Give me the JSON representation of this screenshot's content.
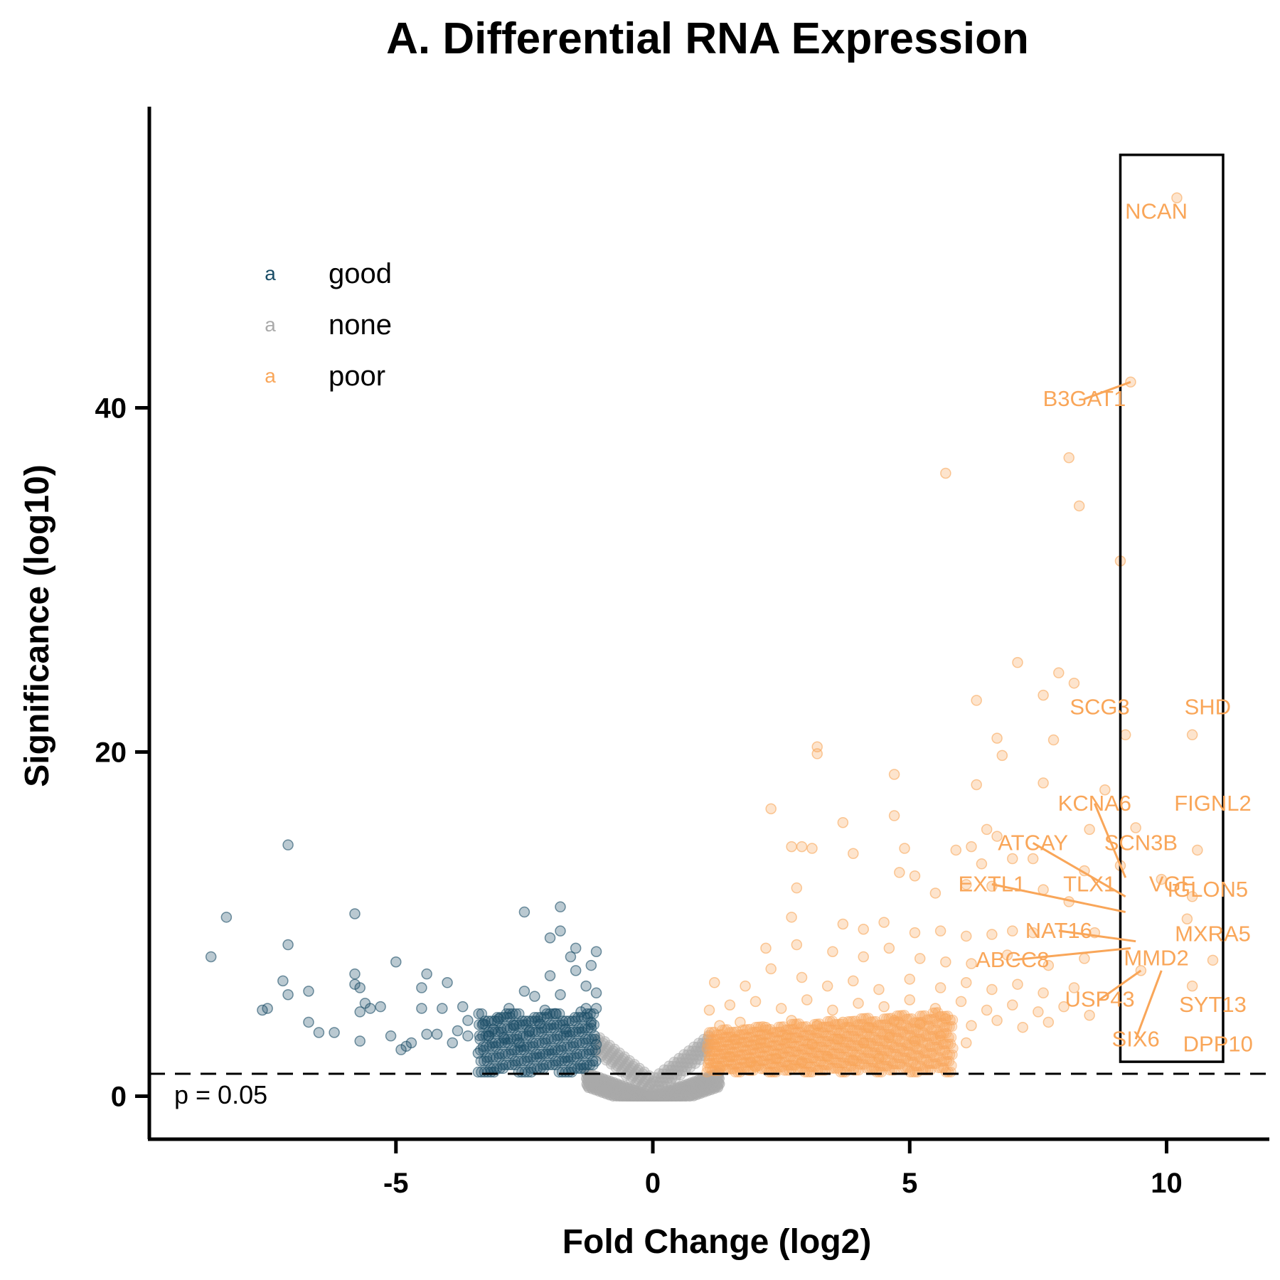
{
  "chart_data": {
    "type": "scatter",
    "title": "A. Differential RNA Expression",
    "xlabel": "Fold Change (log2)",
    "ylabel": "Significance (log10)",
    "xlim": [
      -9.8,
      12
    ],
    "ylim": [
      -2.5,
      57.5
    ],
    "x_ticks": [
      -5,
      0,
      5,
      10
    ],
    "x_tick_labels": [
      "-5",
      "0",
      "5",
      "10"
    ],
    "y_ticks": [
      0,
      20,
      40
    ],
    "y_tick_labels": [
      "0",
      "20",
      "40"
    ],
    "threshold": {
      "y": 1.3,
      "label": "p = 0.05"
    },
    "highlight_box": {
      "x": [
        9.1,
        11.1
      ],
      "y": [
        2,
        54.7
      ]
    },
    "legend": {
      "position": "top-left",
      "key_glyph": "a",
      "entries": [
        {
          "name": "good",
          "color": "#1A4D66"
        },
        {
          "name": "none",
          "color": "#AAAAAA"
        },
        {
          "name": "poor",
          "color": "#F9A659"
        }
      ]
    },
    "series": [
      {
        "name": "good",
        "color": "#1A4D66",
        "points": [
          [
            -8.6,
            8.1
          ],
          [
            -8.3,
            10.4
          ],
          [
            -7.6,
            5
          ],
          [
            -7.5,
            5.1
          ],
          [
            -7.2,
            6.7
          ],
          [
            -7.1,
            14.6
          ],
          [
            -7.1,
            8.8
          ],
          [
            -7.1,
            5.9
          ],
          [
            -6.7,
            6.1
          ],
          [
            -6.7,
            4.3
          ],
          [
            -6.5,
            3.7
          ],
          [
            -6.2,
            3.7
          ],
          [
            -5.8,
            10.6
          ],
          [
            -5.8,
            7.1
          ],
          [
            -5.8,
            6.5
          ],
          [
            -5.7,
            6.3
          ],
          [
            -5.7,
            4.9
          ],
          [
            -5.7,
            3.2
          ],
          [
            -5.6,
            5.4
          ],
          [
            -5.5,
            5.1
          ],
          [
            -5.3,
            5.2
          ],
          [
            -5.1,
            3.5
          ],
          [
            -5,
            7.8
          ],
          [
            -4.9,
            2.7
          ],
          [
            -4.8,
            2.9
          ],
          [
            -4.7,
            3.1
          ],
          [
            -4.5,
            5.1
          ],
          [
            -4.5,
            6.3
          ],
          [
            -4.4,
            7.1
          ],
          [
            -4.4,
            3.6
          ],
          [
            -4.2,
            3.6
          ],
          [
            -4.1,
            5.1
          ],
          [
            -4,
            6.6
          ],
          [
            -3.9,
            3.1
          ],
          [
            -3.8,
            3.8
          ],
          [
            -3.7,
            5.2
          ],
          [
            -3.6,
            4.4
          ],
          [
            -3.6,
            3.5
          ],
          [
            -3.4,
            2.5
          ],
          [
            -3.3,
            4.2
          ],
          [
            -3.2,
            3.5
          ],
          [
            -3.1,
            3.9
          ],
          [
            -3,
            4.5
          ],
          [
            -2.9,
            3.4
          ],
          [
            -2.8,
            5.1
          ],
          [
            -2.7,
            4.1
          ],
          [
            -2.6,
            3.1
          ],
          [
            -2.5,
            6.1
          ],
          [
            -2.5,
            10.7
          ],
          [
            -2.4,
            3.8
          ],
          [
            -2.3,
            5.8
          ],
          [
            -2.2,
            4.2
          ],
          [
            -2.1,
            5.0
          ],
          [
            -2.0,
            9.2
          ],
          [
            -2.0,
            7.0
          ],
          [
            -1.9,
            4.8
          ],
          [
            -1.8,
            11.0
          ],
          [
            -1.8,
            9.6
          ],
          [
            -1.8,
            5.9
          ],
          [
            -1.7,
            3.9
          ],
          [
            -1.6,
            8.1
          ],
          [
            -1.5,
            7.3
          ],
          [
            -1.5,
            8.6
          ],
          [
            -1.4,
            4.9
          ],
          [
            -1.3,
            6.4
          ],
          [
            -1.3,
            5.1
          ],
          [
            -1.2,
            7.6
          ],
          [
            -1.2,
            4.3
          ],
          [
            -1.1,
            8.4
          ],
          [
            -1.1,
            6.0
          ],
          [
            -1.1,
            5.1
          ],
          [
            -1.1,
            3.0
          ]
        ]
      },
      {
        "name": "poor",
        "color": "#F9A659",
        "points": [
          [
            10.2,
            52.2
          ],
          [
            9.3,
            41.5
          ],
          [
            8.1,
            37.1
          ],
          [
            5.7,
            36.2
          ],
          [
            8.3,
            34.3
          ],
          [
            9.1,
            31.1
          ],
          [
            7.1,
            25.2
          ],
          [
            7.9,
            24.6
          ],
          [
            8.2,
            24.0
          ],
          [
            6.3,
            23.0
          ],
          [
            7.6,
            23.3
          ],
          [
            3.2,
            20.3
          ],
          [
            3.2,
            19.9
          ],
          [
            6.7,
            20.8
          ],
          [
            7.8,
            20.7
          ],
          [
            9.2,
            21.0
          ],
          [
            10.5,
            21.0
          ],
          [
            6.8,
            19.8
          ],
          [
            4.7,
            18.7
          ],
          [
            6.3,
            18.1
          ],
          [
            7.6,
            18.2
          ],
          [
            8.8,
            17.8
          ],
          [
            2.3,
            16.7
          ],
          [
            3.7,
            15.9
          ],
          [
            4.7,
            16.3
          ],
          [
            6.5,
            15.5
          ],
          [
            6.7,
            15.1
          ],
          [
            8.5,
            15.5
          ],
          [
            9.4,
            15.6
          ],
          [
            10.6,
            14.3
          ],
          [
            2.7,
            14.5
          ],
          [
            2.9,
            14.5
          ],
          [
            3.1,
            14.4
          ],
          [
            3.9,
            14.1
          ],
          [
            4.9,
            14.4
          ],
          [
            5.9,
            14.3
          ],
          [
            6.2,
            14.5
          ],
          [
            6.4,
            13.5
          ],
          [
            7.0,
            13.8
          ],
          [
            7.4,
            13.8
          ],
          [
            8.4,
            13.1
          ],
          [
            9.1,
            13.4
          ],
          [
            2.8,
            12.1
          ],
          [
            4.8,
            13.0
          ],
          [
            5.1,
            12.8
          ],
          [
            5.5,
            11.8
          ],
          [
            6.1,
            12.3
          ],
          [
            6.6,
            12.2
          ],
          [
            7.6,
            12.0
          ],
          [
            8.1,
            11.3
          ],
          [
            9.9,
            12.6
          ],
          [
            10.5,
            11.6
          ],
          [
            2.7,
            10.4
          ],
          [
            3.7,
            10.0
          ],
          [
            4.1,
            9.7
          ],
          [
            4.5,
            10.1
          ],
          [
            5.1,
            9.5
          ],
          [
            5.6,
            9.6
          ],
          [
            6.1,
            9.3
          ],
          [
            6.6,
            9.4
          ],
          [
            7.0,
            9.6
          ],
          [
            7.4,
            9.5
          ],
          [
            8.6,
            9.5
          ],
          [
            10.4,
            10.3
          ],
          [
            2.2,
            8.6
          ],
          [
            2.8,
            8.8
          ],
          [
            3.5,
            8.4
          ],
          [
            4.1,
            8.1
          ],
          [
            4.6,
            8.6
          ],
          [
            5.2,
            8.0
          ],
          [
            5.7,
            7.8
          ],
          [
            6.2,
            7.7
          ],
          [
            6.9,
            8.2
          ],
          [
            7.7,
            7.6
          ],
          [
            8.4,
            8.0
          ],
          [
            10.9,
            7.9
          ],
          [
            1.2,
            6.6
          ],
          [
            1.8,
            6.4
          ],
          [
            2.3,
            7.4
          ],
          [
            2.9,
            6.9
          ],
          [
            3.4,
            6.4
          ],
          [
            3.9,
            6.7
          ],
          [
            4.4,
            6.2
          ],
          [
            5.0,
            6.8
          ],
          [
            5.6,
            6.3
          ],
          [
            6.1,
            6.6
          ],
          [
            6.6,
            6.2
          ],
          [
            7.1,
            6.5
          ],
          [
            7.6,
            6.0
          ],
          [
            8.2,
            6.3
          ],
          [
            9.5,
            7.3
          ],
          [
            10.5,
            6.4
          ],
          [
            1.1,
            5.0
          ],
          [
            1.5,
            5.3
          ],
          [
            2.0,
            5.5
          ],
          [
            2.5,
            5.1
          ],
          [
            3.0,
            5.6
          ],
          [
            3.5,
            5.0
          ],
          [
            4.0,
            5.4
          ],
          [
            4.5,
            5.2
          ],
          [
            5.0,
            5.6
          ],
          [
            5.5,
            5.1
          ],
          [
            6.0,
            5.5
          ],
          [
            6.5,
            5.0
          ],
          [
            7.0,
            5.3
          ],
          [
            7.5,
            4.9
          ],
          [
            8.0,
            5.2
          ],
          [
            8.5,
            4.7
          ],
          [
            1.3,
            4.1
          ],
          [
            1.7,
            4.3
          ],
          [
            2.2,
            4.0
          ],
          [
            2.7,
            4.4
          ],
          [
            3.2,
            4.1
          ],
          [
            3.7,
            4.3
          ],
          [
            4.2,
            4.0
          ],
          [
            4.7,
            4.4
          ],
          [
            5.2,
            4.2
          ],
          [
            5.7,
            4.5
          ],
          [
            6.2,
            4.1
          ],
          [
            6.7,
            4.4
          ],
          [
            7.2,
            4.0
          ],
          [
            7.7,
            4.3
          ],
          [
            1.2,
            3.0
          ],
          [
            1.6,
            3.3
          ],
          [
            2.1,
            3.1
          ],
          [
            2.6,
            3.4
          ],
          [
            3.1,
            3.0
          ],
          [
            3.6,
            3.3
          ],
          [
            4.1,
            3.1
          ],
          [
            4.6,
            3.4
          ],
          [
            5.1,
            3.2
          ],
          [
            5.6,
            3.5
          ],
          [
            6.1,
            3.1
          ],
          [
            1.1,
            2.1
          ],
          [
            1.5,
            2.3
          ],
          [
            1.9,
            2.0
          ],
          [
            2.4,
            2.2
          ],
          [
            2.9,
            2.0
          ],
          [
            3.4,
            2.3
          ],
          [
            3.9,
            2.1
          ],
          [
            4.4,
            2.2
          ],
          [
            1.3,
            1.6
          ],
          [
            2.0,
            1.7
          ],
          [
            2.7,
            1.6
          ]
        ]
      }
    ],
    "annotations": [
      {
        "text": "NCAN",
        "x": 9.8,
        "y": 51.0,
        "point": [
          10.2,
          52.2
        ]
      },
      {
        "text": "B3GAT1",
        "x": 8.4,
        "y": 40.1,
        "point": [
          9.3,
          41.5
        ]
      },
      {
        "text": "SCG3",
        "x": 8.7,
        "y": 22.2,
        "point": [
          9.2,
          21.0
        ]
      },
      {
        "text": "SHD",
        "x": 10.8,
        "y": 22.2,
        "point": [
          10.5,
          21.0
        ]
      },
      {
        "text": "KCNA6",
        "x": 8.6,
        "y": 16.6,
        "point": [
          9.2,
          12.7
        ]
      },
      {
        "text": "FIGNL2",
        "x": 10.9,
        "y": 16.6,
        "point": [
          10.6,
          14.3
        ]
      },
      {
        "text": "ATCAY",
        "x": 7.4,
        "y": 14.3,
        "point": [
          9.2,
          11.6
        ]
      },
      {
        "text": "SCN3B",
        "x": 9.5,
        "y": 14.3,
        "point": [
          9.2,
          12.7
        ]
      },
      {
        "text": "EXTL1",
        "x": 6.6,
        "y": 11.9,
        "point": [
          9.2,
          10.7
        ]
      },
      {
        "text": "TLX1",
        "x": 8.5,
        "y": 11.9,
        "point": [
          9.3,
          10.3
        ]
      },
      {
        "text": "VGF",
        "x": 10.1,
        "y": 11.9,
        "point": [
          9.9,
          12.6
        ]
      },
      {
        "text": "IGLON5",
        "x": 10.8,
        "y": 11.6,
        "point": [
          10.4,
          10.3
        ]
      },
      {
        "text": "NAT16",
        "x": 7.9,
        "y": 9.2,
        "point": [
          9.4,
          9.0
        ]
      },
      {
        "text": "MXRA5",
        "x": 10.9,
        "y": 9.0,
        "point": [
          10.4,
          9.0
        ]
      },
      {
        "text": "ABCC8",
        "x": 7.0,
        "y": 7.5,
        "point": [
          9.3,
          8.6
        ]
      },
      {
        "text": "MMD2",
        "x": 9.8,
        "y": 7.6,
        "point": [
          9.5,
          7.3
        ]
      },
      {
        "text": "USP43",
        "x": 8.7,
        "y": 5.2,
        "point": [
          9.5,
          7.3
        ]
      },
      {
        "text": "SYT13",
        "x": 10.9,
        "y": 4.9,
        "point": [
          10.5,
          6.4
        ]
      },
      {
        "text": "SIX6",
        "x": 9.4,
        "y": 2.9,
        "point": [
          9.9,
          7.3
        ]
      },
      {
        "text": "DPP10",
        "x": 11.0,
        "y": 2.6,
        "point": [
          10.9,
          4.6
        ]
      }
    ]
  }
}
